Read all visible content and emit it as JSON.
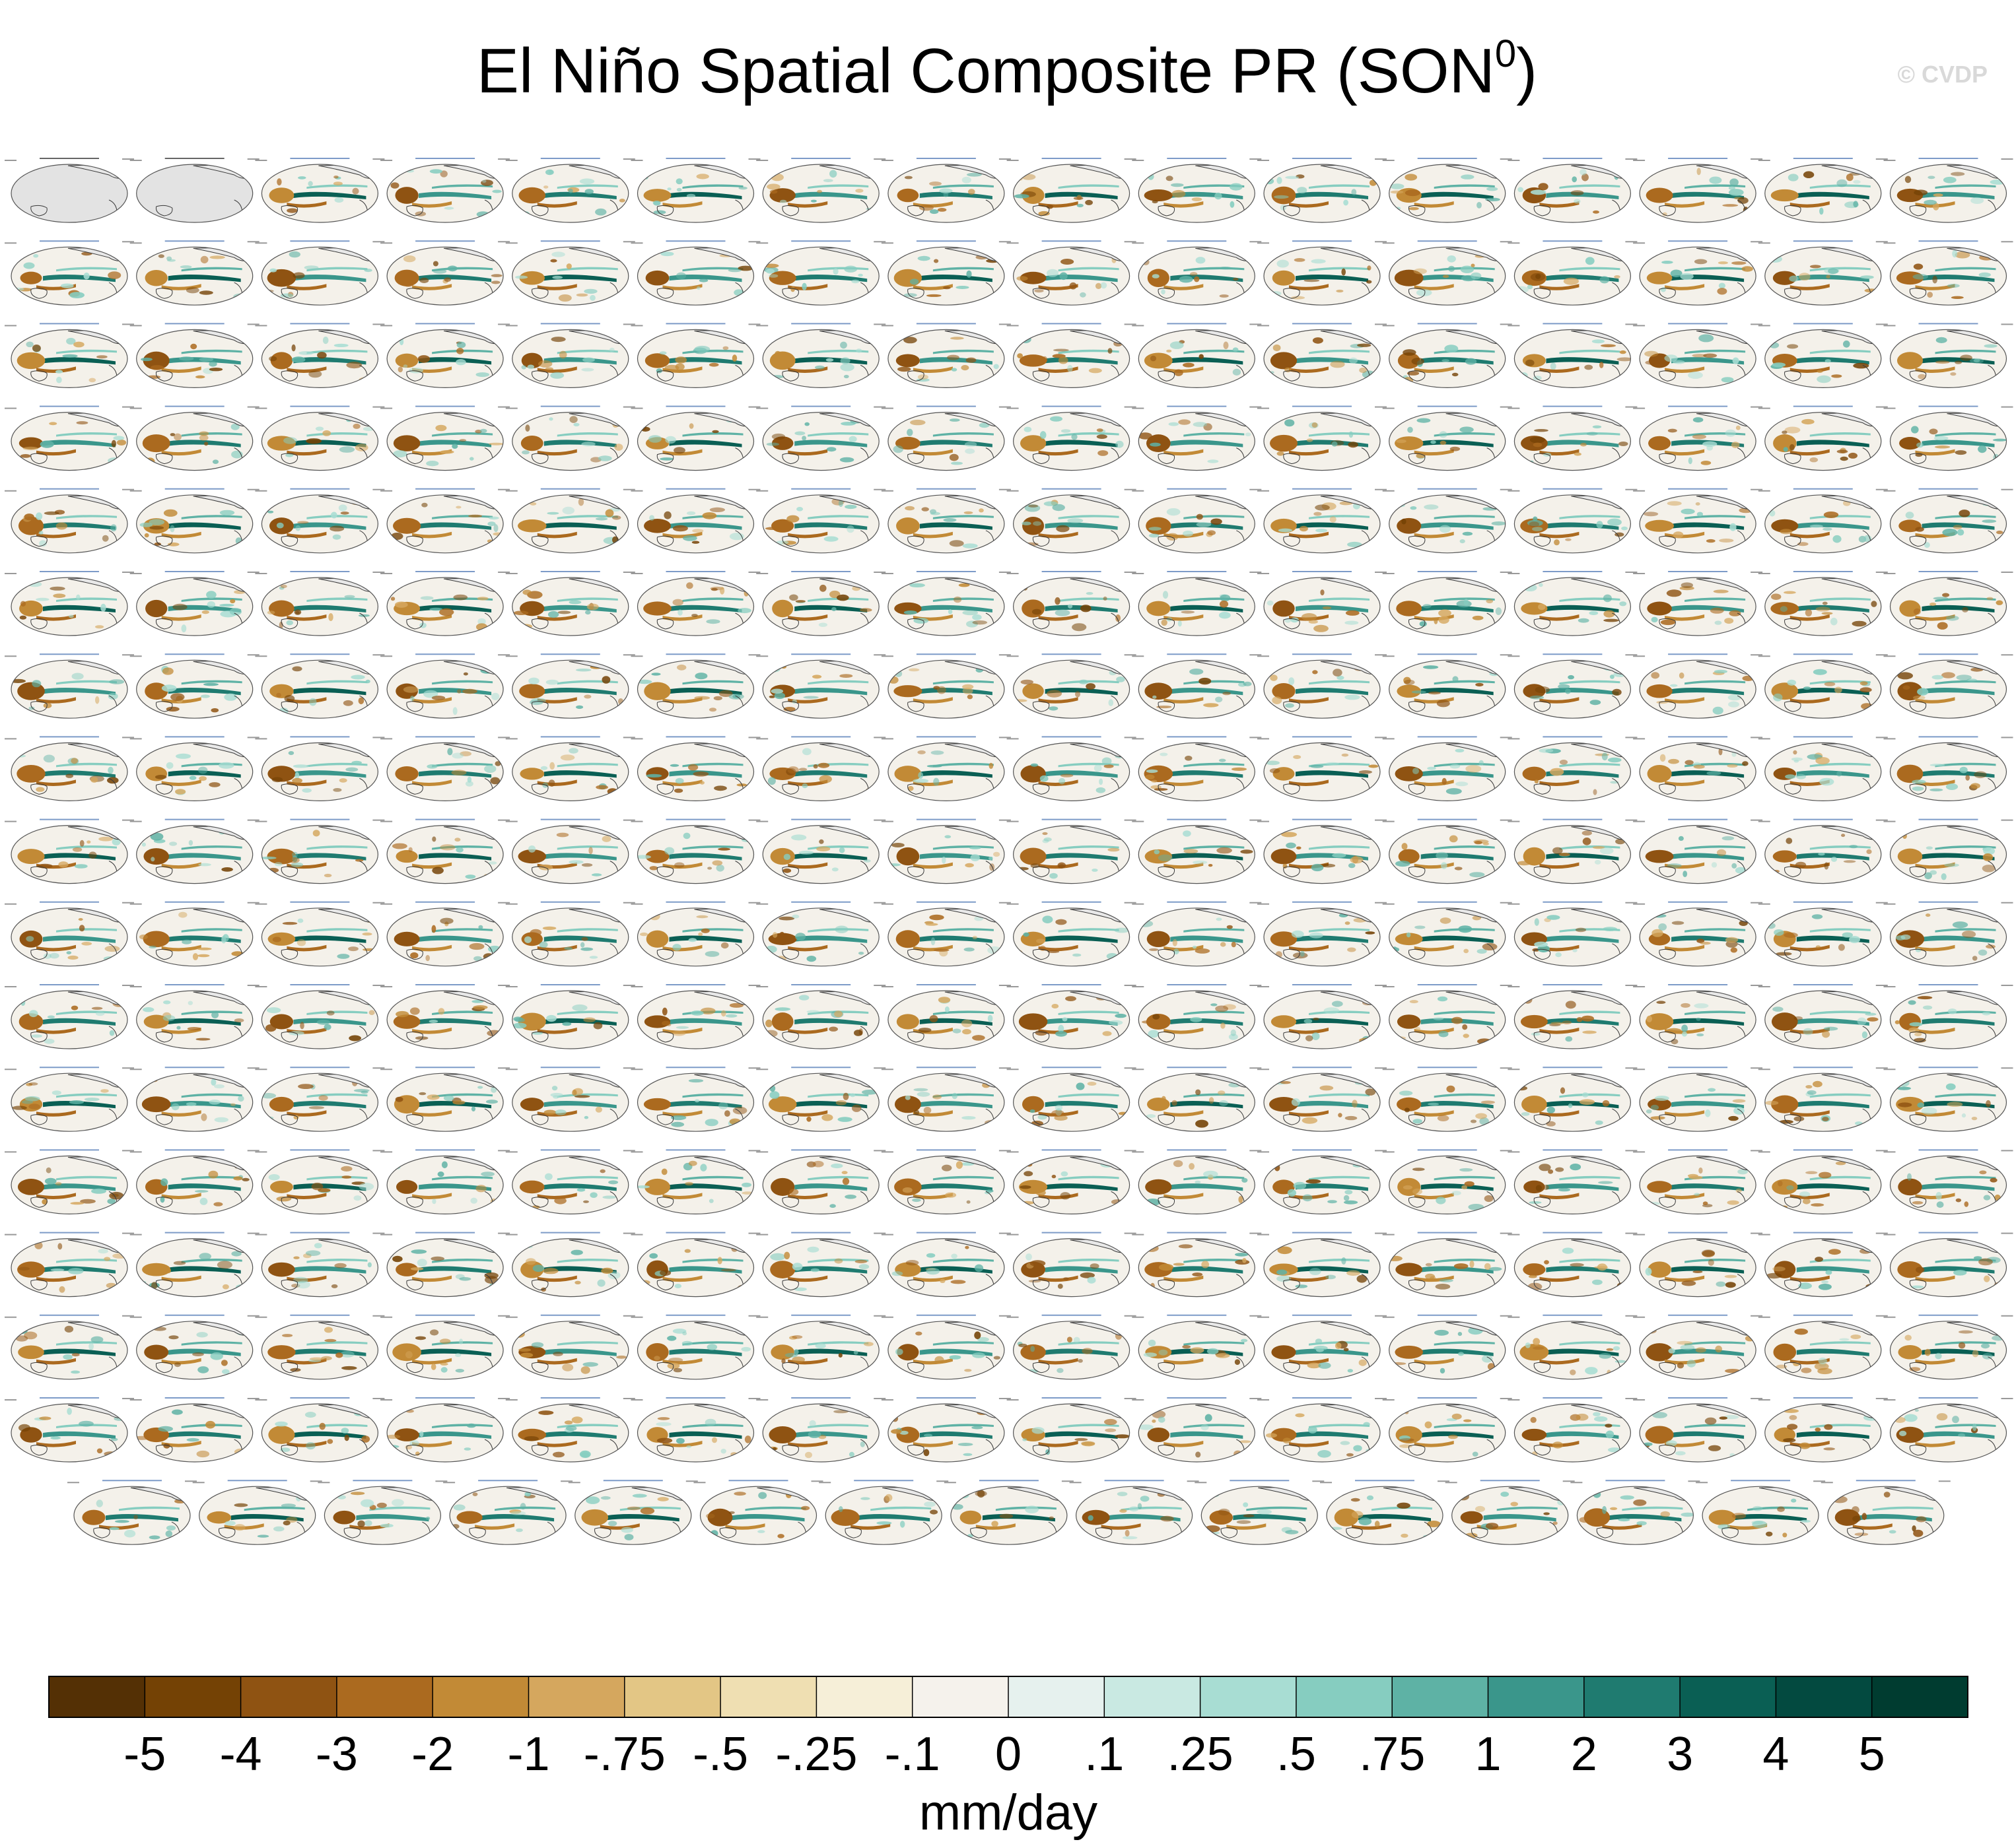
{
  "title": "El Niño Spatial Composite PR (SON",
  "title_sup": "0",
  "title_close": ")",
  "watermark": "© CVDP",
  "colors": {
    "land": "#e8e8e8",
    "coast": "#3a3a3a",
    "ocean_bg": "#f4f1ea",
    "observation_panel_bg": "#e3e3e3"
  },
  "chart_data": {
    "type": "heatmap",
    "title": "El Niño Spatial Composite PR (SON0)",
    "layout": {
      "rows": 17,
      "panels_per_row": 16,
      "last_row_panels": 15,
      "total_panels": 271
    },
    "observation_panels": [
      "GPCC",
      "GPCP"
    ],
    "model_groups": [
      "ACCESS-ESM1-5",
      "CanESM5",
      "CESM1",
      "CESM2"
    ],
    "colorbar": {
      "levels": [
        -5,
        -4,
        -3,
        -2,
        -1,
        -0.75,
        -0.5,
        -0.25,
        -0.1,
        0,
        0.1,
        0.25,
        0.5,
        0.75,
        1,
        2,
        3,
        4,
        5
      ],
      "tick_labels": [
        "-5",
        "-4",
        "-3",
        "-2",
        "-1",
        "-.75",
        "-.5",
        "-.25",
        "-.1",
        "0",
        ".1",
        ".25",
        ".5",
        ".75",
        "1",
        "2",
        "3",
        "4",
        "5"
      ],
      "colors": [
        "#543005",
        "#744205",
        "#8f5312",
        "#ab6a1f",
        "#c28a36",
        "#d5a75e",
        "#e3c685",
        "#efdfb2",
        "#f6efd8",
        "#f5f2ec",
        "#e6f1ee",
        "#c9e9e2",
        "#a8ddd3",
        "#86cdc0",
        "#5eb2a5",
        "#3a968b",
        "#1f7b70",
        "#0a5f54",
        "#034a40",
        "#003c30"
      ],
      "unit": "mm/day"
    }
  }
}
